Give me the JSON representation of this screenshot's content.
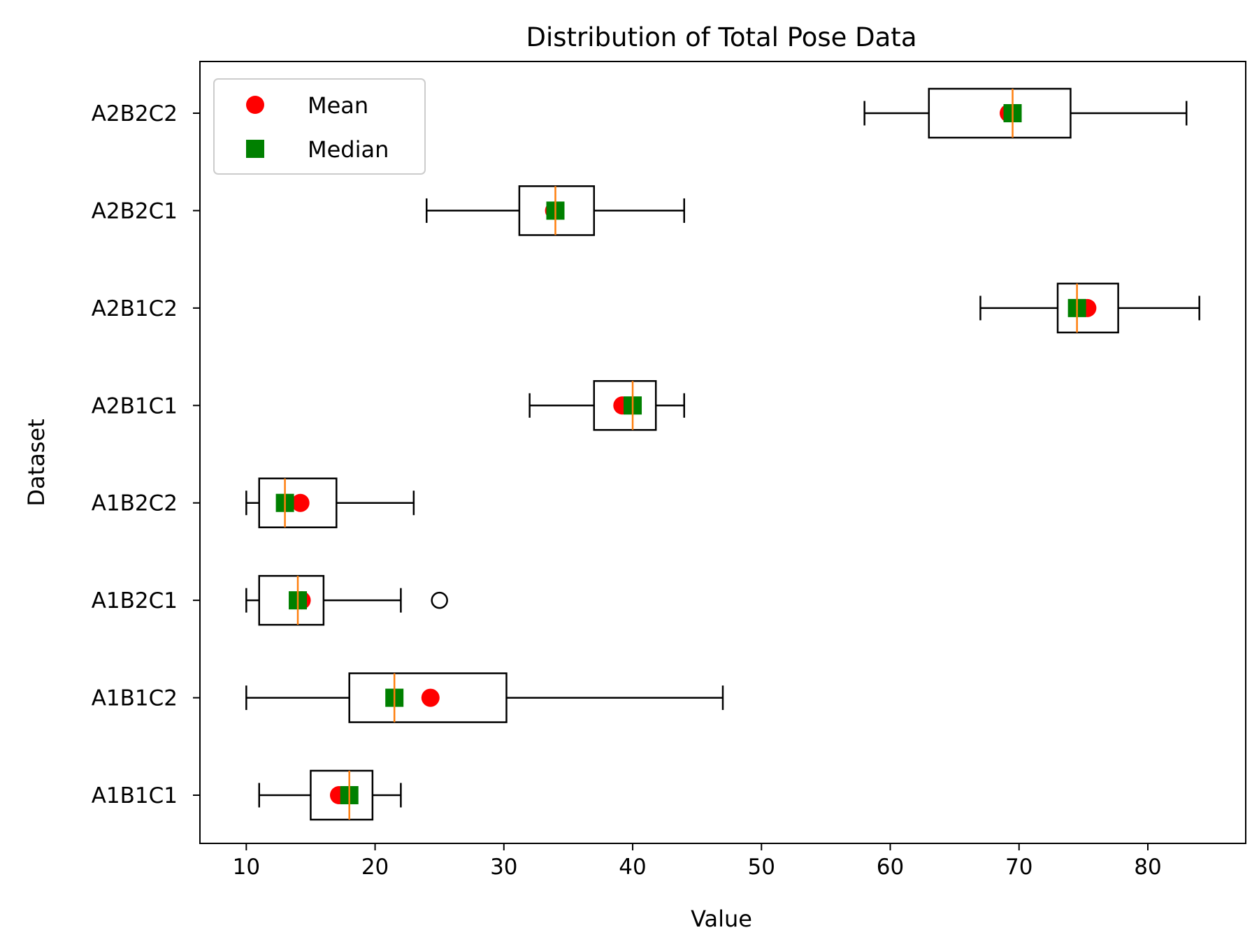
{
  "chart_data": {
    "type": "boxplot",
    "orientation": "horizontal",
    "title": "Distribution of Total Pose Data",
    "xlabel": "Value",
    "ylabel": "Dataset",
    "xlim": [
      6.4,
      87.6
    ],
    "xticks": [
      10,
      20,
      30,
      40,
      50,
      60,
      70,
      80
    ],
    "grid": false,
    "legend_position": "top-left",
    "legend": [
      {
        "label": "Mean",
        "marker": "circle",
        "color": "#ff0000"
      },
      {
        "label": "Median",
        "marker": "square",
        "color": "#008000"
      }
    ],
    "colors": {
      "box": "#000000",
      "median_line": "#ff7f0e",
      "mean": "#ff0000",
      "median": "#008000"
    },
    "categories": [
      "A1B1C1",
      "A1B1C2",
      "A1B2C1",
      "A1B2C2",
      "A2B1C1",
      "A2B1C2",
      "A2B2C1",
      "A2B2C2"
    ],
    "boxes": [
      {
        "name": "A1B1C1",
        "whisker_low": 11,
        "q1": 15,
        "median": 18,
        "q3": 19.8,
        "whisker_high": 22,
        "mean": 17.2,
        "outliers": []
      },
      {
        "name": "A1B1C2",
        "whisker_low": 10,
        "q1": 18,
        "median": 21.5,
        "q3": 30.2,
        "whisker_high": 47,
        "mean": 24.3,
        "outliers": []
      },
      {
        "name": "A1B2C1",
        "whisker_low": 10,
        "q1": 11,
        "median": 14,
        "q3": 16,
        "whisker_high": 22,
        "mean": 14.3,
        "outliers": [
          25
        ]
      },
      {
        "name": "A1B2C2",
        "whisker_low": 10,
        "q1": 11,
        "median": 13,
        "q3": 17,
        "whisker_high": 23,
        "mean": 14.2,
        "outliers": []
      },
      {
        "name": "A2B1C1",
        "whisker_low": 32,
        "q1": 37,
        "median": 40,
        "q3": 41.8,
        "whisker_high": 44,
        "mean": 39.2,
        "outliers": []
      },
      {
        "name": "A2B1C2",
        "whisker_low": 67,
        "q1": 73,
        "median": 74.5,
        "q3": 77.7,
        "whisker_high": 84,
        "mean": 75.3,
        "outliers": []
      },
      {
        "name": "A2B2C1",
        "whisker_low": 24,
        "q1": 31.2,
        "median": 34,
        "q3": 37,
        "whisker_high": 44,
        "mean": 33.9,
        "outliers": []
      },
      {
        "name": "A2B2C2",
        "whisker_low": 58,
        "q1": 63,
        "median": 69.5,
        "q3": 74,
        "whisker_high": 83,
        "mean": 69.2,
        "outliers": []
      }
    ]
  }
}
